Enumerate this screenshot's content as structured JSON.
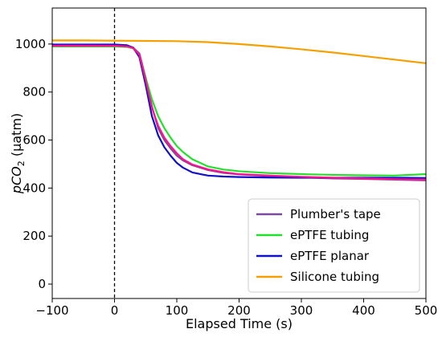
{
  "chart_data": {
    "type": "line",
    "xlabel": "Elapsed Time (s)",
    "ylabel": {
      "prefix": "p",
      "base": "CO",
      "sub": "2",
      "suffix": " (μatm)"
    },
    "xlim": [
      -100,
      500
    ],
    "ylim": [
      -60,
      1150
    ],
    "xticks": [
      -100,
      0,
      100,
      200,
      300,
      400,
      500
    ],
    "yticks": [
      0,
      200,
      400,
      600,
      800,
      1000
    ],
    "vline": {
      "x": 0,
      "style": "dashed",
      "color": "#000000"
    },
    "grid": false,
    "legend_position": "bottom-right",
    "series": [
      {
        "name": "Plumber's tape",
        "color": "#7b4a9e",
        "x": [
          -100,
          -50,
          0,
          20,
          30,
          40,
          50,
          60,
          70,
          80,
          90,
          100,
          110,
          125,
          150,
          175,
          200,
          250,
          300,
          350,
          400,
          450,
          500
        ],
        "y": [
          995,
          995,
          995,
          992,
          985,
          960,
          860,
          740,
          650,
          600,
          565,
          535,
          515,
          495,
          475,
          463,
          457,
          450,
          445,
          440,
          438,
          435,
          432
        ]
      },
      {
        "name": "ePTFE tubing",
        "color": "#22e02a",
        "x": [
          -100,
          -50,
          0,
          20,
          30,
          40,
          50,
          60,
          70,
          80,
          90,
          100,
          110,
          125,
          150,
          175,
          200,
          250,
          300,
          350,
          400,
          450,
          500
        ],
        "y": [
          990,
          990,
          990,
          988,
          982,
          950,
          860,
          770,
          700,
          650,
          610,
          575,
          550,
          520,
          490,
          477,
          470,
          462,
          458,
          455,
          453,
          452,
          458
        ]
      },
      {
        "name": "ePTFE planar",
        "color": "#1010c8",
        "x": [
          -100,
          -50,
          0,
          20,
          30,
          40,
          50,
          60,
          70,
          80,
          90,
          100,
          110,
          125,
          150,
          175,
          200,
          250,
          300,
          350,
          400,
          450,
          500
        ],
        "y": [
          998,
          998,
          998,
          995,
          985,
          945,
          830,
          700,
          620,
          570,
          535,
          505,
          485,
          465,
          452,
          448,
          446,
          444,
          443,
          443,
          443,
          443,
          442
        ]
      },
      {
        "name": "Silicone tubing",
        "color": "#f5a000",
        "x": [
          -100,
          -50,
          0,
          50,
          100,
          150,
          200,
          250,
          300,
          350,
          400,
          450,
          500
        ],
        "y": [
          1015,
          1015,
          1014,
          1013,
          1012,
          1008,
          1000,
          990,
          978,
          965,
          950,
          935,
          920
        ]
      },
      {
        "name": "",
        "color": "#ff1090",
        "x": [
          -100,
          0,
          20,
          30,
          40,
          50,
          60,
          70,
          80,
          90,
          100,
          110,
          125,
          150,
          175,
          200,
          250,
          300,
          350,
          400,
          450,
          500
        ],
        "y": [
          993,
          993,
          990,
          983,
          955,
          850,
          735,
          660,
          610,
          575,
          545,
          520,
          498,
          478,
          466,
          458,
          452,
          447,
          443,
          440,
          437,
          435
        ]
      }
    ]
  }
}
